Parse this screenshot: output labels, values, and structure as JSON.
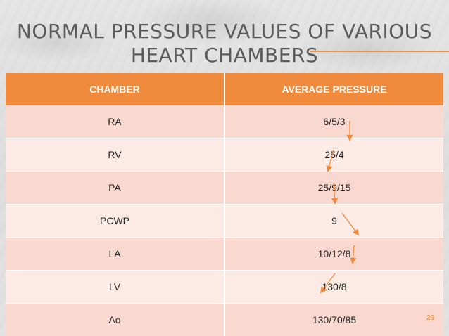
{
  "slide": {
    "title": "NORMAL PRESSURE VALUES OF VARIOUS HEART CHAMBERS",
    "page_number": "29",
    "accent_color": "#f08a3c"
  },
  "table": {
    "headers": [
      "CHAMBER",
      "AVERAGE PRESSURE"
    ],
    "rows": [
      {
        "chamber": "RA",
        "pressure": "6/5/3"
      },
      {
        "chamber": "RV",
        "pressure": "25/4"
      },
      {
        "chamber": "PA",
        "pressure": "25/9/15"
      },
      {
        "chamber": "PCWP",
        "pressure": "9"
      },
      {
        "chamber": "LA",
        "pressure": "10/12/8"
      },
      {
        "chamber": "LV",
        "pressure": "130/8"
      },
      {
        "chamber": "Ao",
        "pressure": "130/70/85"
      }
    ]
  }
}
